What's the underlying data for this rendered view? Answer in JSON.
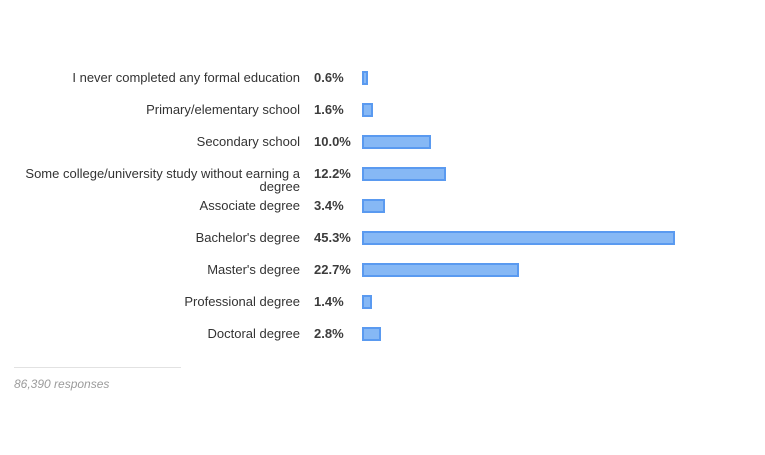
{
  "chart_data": {
    "type": "bar",
    "orientation": "horizontal",
    "categories": [
      "I never completed any formal education",
      "Primary/elementary school",
      "Secondary school",
      "Some college/university study without earning a degree",
      "Associate degree",
      "Bachelor's degree",
      "Master's degree",
      "Professional degree",
      "Doctoral degree"
    ],
    "values": [
      0.6,
      1.6,
      10.0,
      12.2,
      3.4,
      45.3,
      22.7,
      1.4,
      2.8
    ],
    "value_labels": [
      "0.6%",
      "1.6%",
      "10.0%",
      "12.2%",
      "3.4%",
      "45.3%",
      "22.7%",
      "1.4%",
      "2.8%"
    ],
    "bar_color": "#86b8f5",
    "bar_border_color": "#5a9af0",
    "grid": false
  },
  "footer": {
    "responses": "86,390 responses"
  }
}
